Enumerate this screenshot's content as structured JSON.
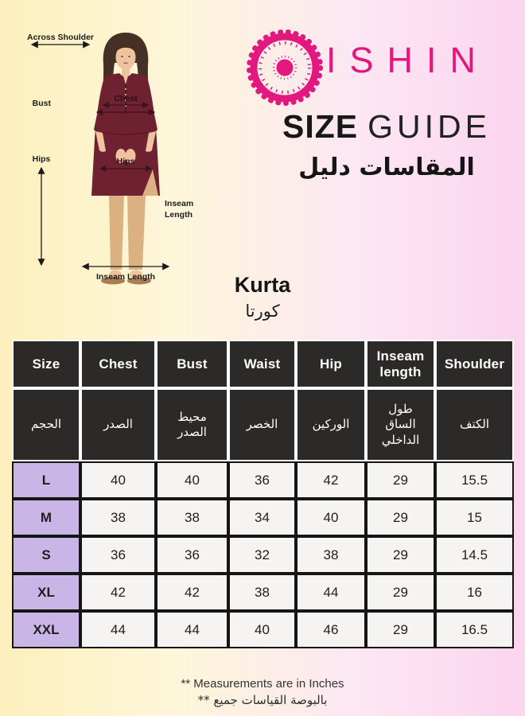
{
  "brand": {
    "logo_letters": "ISHIN",
    "accent_pink": "#e2187f"
  },
  "heading": {
    "size_bold": "SIZE",
    "guide_light": "GUIDE",
    "subtitle_ar": "دليل‎ المقاسات"
  },
  "product": {
    "name_en": "Kurta",
    "name_ar": "كورتا"
  },
  "diagram": {
    "labels": {
      "across_shoulder": "Across Shoulder",
      "bust": "Bust",
      "chest": "Chest",
      "hips_side": "Hips",
      "hips_garment": "Hips",
      "inseam_side_line1": "Inseam",
      "inseam_side_line2": "Length",
      "inseam_bottom": "Inseam Length"
    },
    "colors": {
      "kurta": "#6e2130",
      "pants": "#dcb181",
      "hair": "#463026",
      "skin": "#eec49e"
    }
  },
  "table": {
    "columns_en": [
      "Size",
      "Chest",
      "Bust",
      "Waist",
      "Hip",
      "Inseam\nlength",
      "Shoulder"
    ],
    "columns_ar": [
      "الحجم",
      "الصدر",
      "محيط\nالصدر",
      "الخصر",
      "الوركين",
      "طول\nالساق\nالداخلي",
      "الكتف"
    ],
    "rows": [
      {
        "size": "L",
        "values": [
          40,
          40,
          36,
          42,
          29,
          15.5
        ]
      },
      {
        "size": "M",
        "values": [
          38,
          38,
          34,
          40,
          29,
          15
        ]
      },
      {
        "size": "S",
        "values": [
          36,
          36,
          32,
          38,
          29,
          14.5
        ]
      },
      {
        "size": "XL",
        "values": [
          42,
          42,
          38,
          44,
          29,
          16
        ]
      },
      {
        "size": "XXL",
        "values": [
          44,
          44,
          40,
          46,
          29,
          16.5
        ]
      }
    ]
  },
  "footer": {
    "note_en": "** Measurements are in Inches",
    "note_ar": "** جميع‎ القياسات‎ بالبوصة"
  },
  "colors": {
    "header_cell_bg": "#2b2a29",
    "header_cell_text": "#ffffff",
    "size_cell_bg": "#c9b6e6",
    "value_cell_bg": "#f5f4f2",
    "grid_border": "#151515",
    "bg_left_yellow": "#fdf0bd",
    "bg_right_pink": "#fbd4ee"
  }
}
